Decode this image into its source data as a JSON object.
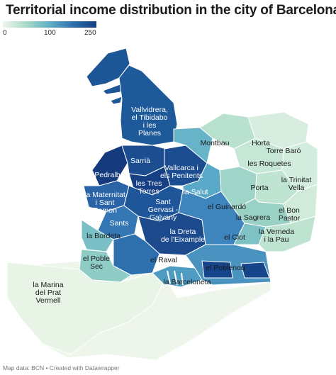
{
  "title": "Territorial income distribution in the city of Barcelona",
  "legend": {
    "ticks": [
      "0",
      "100",
      "250"
    ],
    "colors": [
      "#eef7ee",
      "#a9d8c8",
      "#5fb0c7",
      "#2e6fae",
      "#173f83"
    ]
  },
  "map": {
    "districts": [
      {
        "name": "Vallvidrera,\nel Tibidabo\ni les\nPlanes",
        "light": true
      },
      {
        "name": "Montbau"
      },
      {
        "name": "Horta"
      },
      {
        "name": "Torre Baró"
      },
      {
        "name": "les Roquetes"
      },
      {
        "name": "Sarrià",
        "light": true
      },
      {
        "name": "Pedralbes",
        "light": true
      },
      {
        "name": "Vallcarca i\nels Penitents",
        "light": true
      },
      {
        "name": "la Trinitat\nVella"
      },
      {
        "name": "les Tres\nTorres",
        "light": true
      },
      {
        "name": "la Salut",
        "light": true
      },
      {
        "name": "Porta"
      },
      {
        "name": "la Maternitat\ni Sant\nRamon",
        "light": true
      },
      {
        "name": "Sant\nGervasi -\nGalvany",
        "light": true
      },
      {
        "name": "el Guinardó"
      },
      {
        "name": "el Bon\nPastor"
      },
      {
        "name": "la Sagrera"
      },
      {
        "name": "Sants",
        "light": true
      },
      {
        "name": "la Bordeta"
      },
      {
        "name": "la Dreta\nde l'Eixample",
        "light": true
      },
      {
        "name": "el Clot"
      },
      {
        "name": "la Verneda\ni la Pau"
      },
      {
        "name": "el Raval"
      },
      {
        "name": "el Poble\nSec"
      },
      {
        "name": "el Poblenou"
      },
      {
        "name": "la Barceloneta"
      },
      {
        "name": "la Marina\ndel Prat\nVermell"
      }
    ]
  },
  "footer": "Map data: BCN • Created with Datawrapper"
}
